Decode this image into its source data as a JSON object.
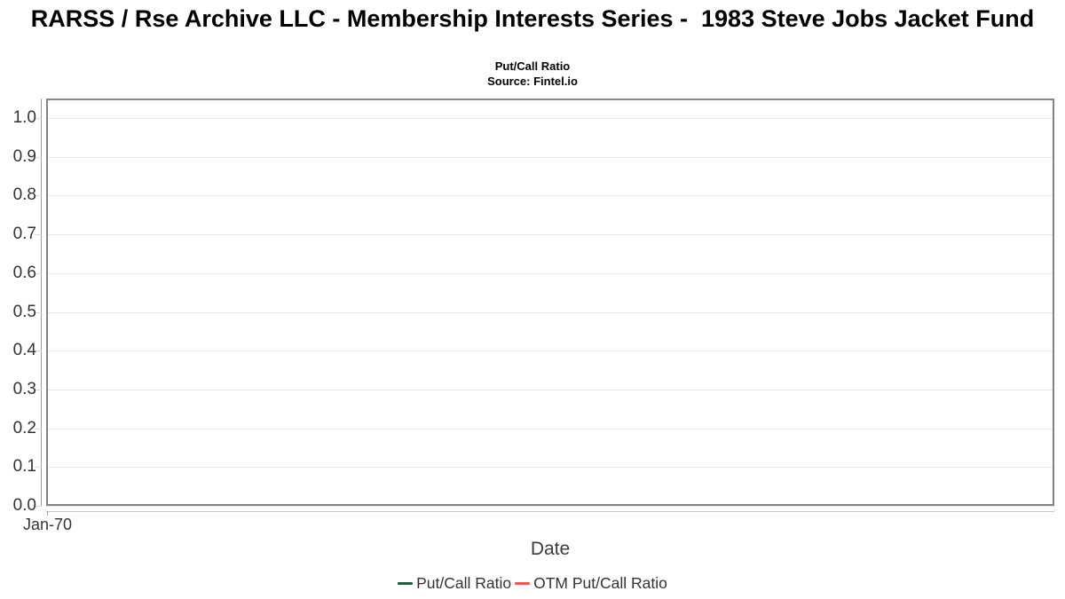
{
  "chart_data": {
    "type": "line",
    "title": "RARSS / Rse Archive LLC - Membership Interests Series -  1983 Steve Jobs Jacket Fund",
    "subtitle": "Put/Call Ratio",
    "source": "Source: Fintel.io",
    "xlabel": "Date",
    "ylabel": "",
    "ylim": [
      0.0,
      1.0
    ],
    "y_tick_labels": [
      "1.0",
      "0.9",
      "0.8",
      "0.7",
      "0.6",
      "0.5",
      "0.4",
      "0.3",
      "0.2",
      "0.1",
      "0.0"
    ],
    "x_tick_labels": [
      "Jan-70"
    ],
    "grid": true,
    "legend_position": "bottom",
    "series": [
      {
        "name": "Put/Call Ratio",
        "color": "#235c3a",
        "x": [],
        "values": []
      },
      {
        "name": "OTM Put/Call Ratio",
        "color": "#f85550",
        "x": [],
        "values": []
      }
    ],
    "colors": {
      "plot_border": "#848484",
      "gridline": "#e8e8e8",
      "axis_line": "#9a9a9a",
      "tick_label": "#333333",
      "title": "#000000"
    }
  }
}
